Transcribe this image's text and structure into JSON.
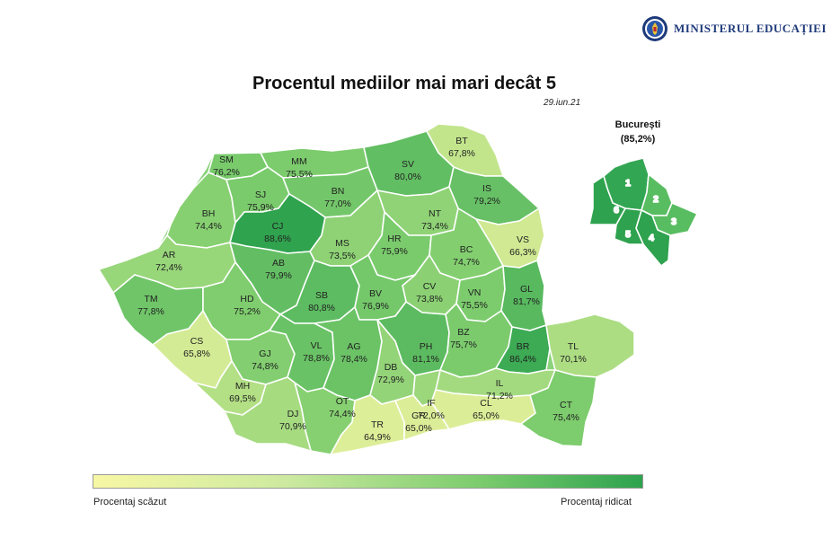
{
  "header": {
    "org_name": "MINISTERUL EDUCAȚIEI",
    "logo_text": "MINISTERUL EDUCAȚIEI ROMÂNIA"
  },
  "title": "Procentul mediilor mai mari decât 5",
  "date": "29.iun.21",
  "bucharest": {
    "name": "București",
    "value": "(85,2%)",
    "sectors": [
      "1",
      "2",
      "3",
      "4",
      "5",
      "6"
    ]
  },
  "legend": {
    "low": "Procentaj scăzut",
    "high": "Procentaj ridicat"
  },
  "colors": {
    "low": "#f7f7a4",
    "mid": "#7ccc6d",
    "high": "#2ea24e",
    "border": "#ffffff"
  },
  "counties": [
    {
      "code": "SM",
      "value": "76,2%",
      "pct": 76.2
    },
    {
      "code": "MM",
      "value": "75,5%",
      "pct": 75.5
    },
    {
      "code": "SV",
      "value": "80,0%",
      "pct": 80.0
    },
    {
      "code": "BT",
      "value": "67,8%",
      "pct": 67.8
    },
    {
      "code": "IS",
      "value": "79,2%",
      "pct": 79.2
    },
    {
      "code": "SJ",
      "value": "75,9%",
      "pct": 75.9
    },
    {
      "code": "BN",
      "value": "77,0%",
      "pct": 77.0
    },
    {
      "code": "CJ",
      "value": "88,6%",
      "pct": 88.6
    },
    {
      "code": "BH",
      "value": "74,4%",
      "pct": 74.4
    },
    {
      "code": "NT",
      "value": "73,4%",
      "pct": 73.4
    },
    {
      "code": "VS",
      "value": "66,3%",
      "pct": 66.3
    },
    {
      "code": "HR",
      "value": "75,9%",
      "pct": 75.9
    },
    {
      "code": "MS",
      "value": "73,5%",
      "pct": 73.5
    },
    {
      "code": "BC",
      "value": "74,7%",
      "pct": 74.7
    },
    {
      "code": "AR",
      "value": "72,4%",
      "pct": 72.4
    },
    {
      "code": "AB",
      "value": "79,9%",
      "pct": 79.9
    },
    {
      "code": "CV",
      "value": "73,8%",
      "pct": 73.8
    },
    {
      "code": "VN",
      "value": "75,5%",
      "pct": 75.5
    },
    {
      "code": "GL",
      "value": "81,7%",
      "pct": 81.7
    },
    {
      "code": "TM",
      "value": "77,8%",
      "pct": 77.8
    },
    {
      "code": "HD",
      "value": "75,2%",
      "pct": 75.2
    },
    {
      "code": "SB",
      "value": "80,8%",
      "pct": 80.8
    },
    {
      "code": "BV",
      "value": "76,9%",
      "pct": 76.9
    },
    {
      "code": "CS",
      "value": "65,8%",
      "pct": 65.8
    },
    {
      "code": "GJ",
      "value": "74,8%",
      "pct": 74.8
    },
    {
      "code": "VL",
      "value": "78,8%",
      "pct": 78.8
    },
    {
      "code": "AG",
      "value": "78,4%",
      "pct": 78.4
    },
    {
      "code": "PH",
      "value": "81,1%",
      "pct": 81.1
    },
    {
      "code": "BZ",
      "value": "75,7%",
      "pct": 75.7
    },
    {
      "code": "BR",
      "value": "86,4%",
      "pct": 86.4
    },
    {
      "code": "TL",
      "value": "70,1%",
      "pct": 70.1
    },
    {
      "code": "DB",
      "value": "72,9%",
      "pct": 72.9
    },
    {
      "code": "IL",
      "value": "71,2%",
      "pct": 71.2
    },
    {
      "code": "MH",
      "value": "69,5%",
      "pct": 69.5
    },
    {
      "code": "IF",
      "value": "72,0%",
      "pct": 72.0
    },
    {
      "code": "CL",
      "value": "65,0%",
      "pct": 65.0
    },
    {
      "code": "OT",
      "value": "74,4%",
      "pct": 74.4
    },
    {
      "code": "DJ",
      "value": "70,9%",
      "pct": 70.9
    },
    {
      "code": "TR",
      "value": "64,9%",
      "pct": 64.9
    },
    {
      "code": "GR",
      "value": "65,0%",
      "pct": 65.0
    },
    {
      "code": "CT",
      "value": "75,4%",
      "pct": 75.4
    }
  ]
}
